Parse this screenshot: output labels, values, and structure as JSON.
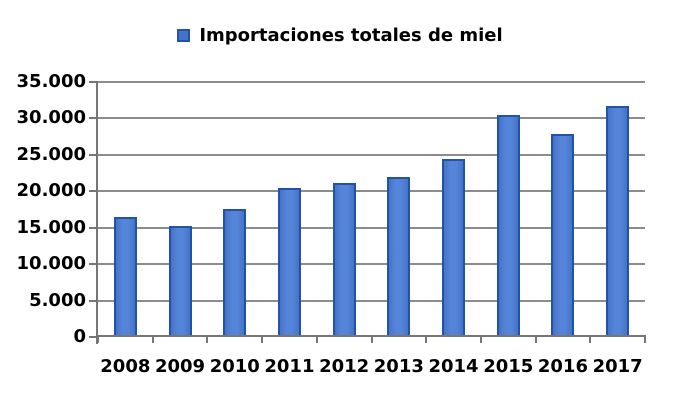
{
  "chart_data": {
    "type": "bar",
    "series_name": "Importaciones totales de miel",
    "categories": [
      "2008",
      "2009",
      "2010",
      "2011",
      "2012",
      "2013",
      "2014",
      "2015",
      "2016",
      "2017"
    ],
    "values": [
      16500,
      15200,
      17600,
      20400,
      21200,
      22000,
      24400,
      30500,
      27800,
      31700
    ],
    "ylim": [
      0,
      35000
    ],
    "ytick_step": 5000,
    "ytick_labels": [
      "0",
      "5.000",
      "10.000",
      "15.000",
      "20.000",
      "25.000",
      "30.000",
      "35.000"
    ],
    "grid": true,
    "legend_position": "top-center",
    "xlabel": "",
    "ylabel": "",
    "colors": {
      "bar_fill": "#4573C8",
      "bar_fill_light": "#5585D8",
      "bar_border": "#2353A6",
      "gridline": "#8C8C8C",
      "axis": "#767676",
      "text": "#000000",
      "background": "#FFFFFF"
    }
  }
}
